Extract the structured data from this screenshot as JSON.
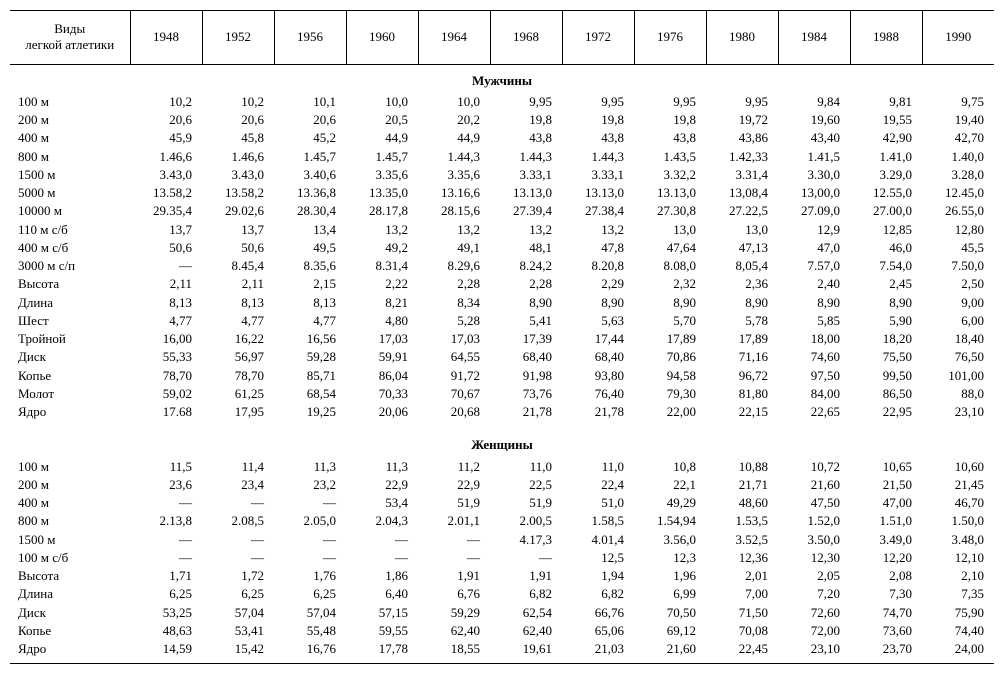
{
  "header_label": "Виды\nлегкой атлетики",
  "years": [
    "1948",
    "1952",
    "1956",
    "1960",
    "1964",
    "1968",
    "1972",
    "1976",
    "1980",
    "1984",
    "1988",
    "1990"
  ],
  "section1": "Мужчины",
  "section2": "Женщины",
  "men_rows": [
    {
      "label": "100 м",
      "v": [
        "10,2",
        "10,2",
        "10,1",
        "10,0",
        "10,0",
        "9,95",
        "9,95",
        "9,95",
        "9,95",
        "9,84",
        "9,81",
        "9,75"
      ]
    },
    {
      "label": "200 м",
      "v": [
        "20,6",
        "20,6",
        "20,6",
        "20,5",
        "20,2",
        "19,8",
        "19,8",
        "19,8",
        "19,72",
        "19,60",
        "19,55",
        "19,40"
      ]
    },
    {
      "label": "400 м",
      "v": [
        "45,9",
        "45,8",
        "45,2",
        "44,9",
        "44,9",
        "43,8",
        "43,8",
        "43,8",
        "43,86",
        "43,40",
        "42,90",
        "42,70"
      ]
    },
    {
      "label": "800 м",
      "v": [
        "1.46,6",
        "1.46,6",
        "1.45,7",
        "1.45,7",
        "1.44,3",
        "1.44,3",
        "1.44,3",
        "1.43,5",
        "1.42,33",
        "1.41,5",
        "1.41,0",
        "1.40,0"
      ]
    },
    {
      "label": "1500 м",
      "v": [
        "3.43,0",
        "3.43,0",
        "3.40,6",
        "3.35,6",
        "3.35,6",
        "3.33,1",
        "3.33,1",
        "3.32,2",
        "3.31,4",
        "3.30,0",
        "3.29,0",
        "3.28,0"
      ]
    },
    {
      "label": "5000 м",
      "v": [
        "13.58,2",
        "13.58,2",
        "13.36,8",
        "13.35,0",
        "13.16,6",
        "13.13,0",
        "13.13,0",
        "13.13,0",
        "13,08,4",
        "13,00,0",
        "12.55,0",
        "12.45,0"
      ]
    },
    {
      "label": "10000 м",
      "v": [
        "29.35,4",
        "29.02,6",
        "28.30,4",
        "28.17,8",
        "28.15,6",
        "27.39,4",
        "27.38,4",
        "27.30,8",
        "27.22,5",
        "27.09,0",
        "27.00,0",
        "26.55,0"
      ]
    },
    {
      "label": "110 м с/б",
      "v": [
        "13,7",
        "13,7",
        "13,4",
        "13,2",
        "13,2",
        "13,2",
        "13,2",
        "13,0",
        "13,0",
        "12,9",
        "12,85",
        "12,80"
      ]
    },
    {
      "label": "400 м с/б",
      "v": [
        "50,6",
        "50,6",
        "49,5",
        "49,2",
        "49,1",
        "48,1",
        "47,8",
        "47,64",
        "47,13",
        "47,0",
        "46,0",
        "45,5"
      ]
    },
    {
      "label": "3000 м с/п",
      "v": [
        "—",
        "8.45,4",
        "8.35,6",
        "8.31,4",
        "8.29,6",
        "8.24,2",
        "8.20,8",
        "8.08,0",
        "8,05,4",
        "7.57,0",
        "7.54,0",
        "7.50,0"
      ]
    },
    {
      "label": "Высота",
      "v": [
        "2,11",
        "2,11",
        "2,15",
        "2,22",
        "2,28",
        "2,28",
        "2,29",
        "2,32",
        "2,36",
        "2,40",
        "2,45",
        "2,50"
      ]
    },
    {
      "label": "Длина",
      "v": [
        "8,13",
        "8,13",
        "8,13",
        "8,21",
        "8,34",
        "8,90",
        "8,90",
        "8,90",
        "8,90",
        "8,90",
        "8,90",
        "9,00"
      ]
    },
    {
      "label": "Шест",
      "v": [
        "4,77",
        "4,77",
        "4,77",
        "4,80",
        "5,28",
        "5,41",
        "5,63",
        "5,70",
        "5,78",
        "5,85",
        "5,90",
        "6,00"
      ]
    },
    {
      "label": "Тройной",
      "v": [
        "16,00",
        "16,22",
        "16,56",
        "17,03",
        "17,03",
        "17,39",
        "17,44",
        "17,89",
        "17,89",
        "18,00",
        "18,20",
        "18,40"
      ]
    },
    {
      "label": "Диск",
      "v": [
        "55,33",
        "56,97",
        "59,28",
        "59,91",
        "64,55",
        "68,40",
        "68,40",
        "70,86",
        "71,16",
        "74,60",
        "75,50",
        "76,50"
      ]
    },
    {
      "label": "Копье",
      "v": [
        "78,70",
        "78,70",
        "85,71",
        "86,04",
        "91,72",
        "91,98",
        "93,80",
        "94,58",
        "96,72",
        "97,50",
        "99,50",
        "101,00"
      ]
    },
    {
      "label": "Молот",
      "v": [
        "59,02",
        "61,25",
        "68,54",
        "70,33",
        "70,67",
        "73,76",
        "76,40",
        "79,30",
        "81,80",
        "84,00",
        "86,50",
        "88,0"
      ]
    },
    {
      "label": "Ядро",
      "v": [
        "17.68",
        "17,95",
        "19,25",
        "20,06",
        "20,68",
        "21,78",
        "21,78",
        "22,00",
        "22,15",
        "22,65",
        "22,95",
        "23,10"
      ]
    }
  ],
  "women_rows": [
    {
      "label": "100 м",
      "v": [
        "11,5",
        "11,4",
        "11,3",
        "11,3",
        "11,2",
        "11,0",
        "11,0",
        "10,8",
        "10,88",
        "10,72",
        "10,65",
        "10,60"
      ]
    },
    {
      "label": "200 м",
      "v": [
        "23,6",
        "23,4",
        "23,2",
        "22,9",
        "22,9",
        "22,5",
        "22,4",
        "22,1",
        "21,71",
        "21,60",
        "21,50",
        "21,45"
      ]
    },
    {
      "label": "400 м",
      "v": [
        "—",
        "—",
        "—",
        "53,4",
        "51,9",
        "51,9",
        "51,0",
        "49,29",
        "48,60",
        "47,50",
        "47,00",
        "46,70"
      ]
    },
    {
      "label": "800 м",
      "v": [
        "2.13,8",
        "2.08,5",
        "2.05,0",
        "2.04,3",
        "2.01,1",
        "2.00,5",
        "1.58,5",
        "1.54,94",
        "1.53,5",
        "1.52,0",
        "1.51,0",
        "1.50,0"
      ]
    },
    {
      "label": "1500 м",
      "v": [
        "—",
        "—",
        "—",
        "—",
        "—",
        "4.17,3",
        "4.01,4",
        "3.56,0",
        "3.52,5",
        "3.50,0",
        "3.49,0",
        "3.48,0"
      ]
    },
    {
      "label": "100 м с/б",
      "v": [
        "—",
        "—",
        "—",
        "—",
        "—",
        "—",
        "12,5",
        "12,3",
        "12,36",
        "12,30",
        "12,20",
        "12,10"
      ]
    },
    {
      "label": "Высота",
      "v": [
        "1,71",
        "1,72",
        "1,76",
        "1,86",
        "1,91",
        "1,91",
        "1,94",
        "1,96",
        "2,01",
        "2,05",
        "2,08",
        "2,10"
      ]
    },
    {
      "label": "Длина",
      "v": [
        "6,25",
        "6,25",
        "6,25",
        "6,40",
        "6,76",
        "6,82",
        "6,82",
        "6,99",
        "7,00",
        "7,20",
        "7,30",
        "7,35"
      ]
    },
    {
      "label": "Диск",
      "v": [
        "53,25",
        "57,04",
        "57,04",
        "57,15",
        "59,29",
        "62,54",
        "66,76",
        "70,50",
        "71,50",
        "72,60",
        "74,70",
        "75,90"
      ]
    },
    {
      "label": "Копье",
      "v": [
        "48,63",
        "53,41",
        "55,48",
        "59,55",
        "62,40",
        "62,40",
        "65,06",
        "69,12",
        "70,08",
        "72,00",
        "73,60",
        "74,40"
      ]
    },
    {
      "label": "Ядро",
      "v": [
        "14,59",
        "15,42",
        "16,76",
        "17,78",
        "18,55",
        "19,61",
        "21,03",
        "21,60",
        "22,45",
        "23,10",
        "23,70",
        "24,00"
      ]
    }
  ]
}
